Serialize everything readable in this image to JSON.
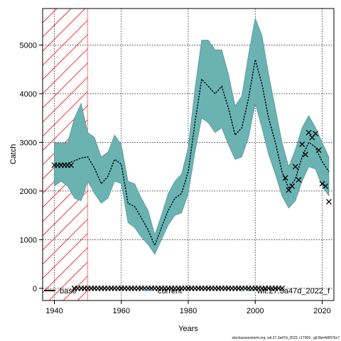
{
  "chart_data": {
    "type": "line",
    "title": "",
    "xlabel": "Years",
    "ylabel": "Catch",
    "xlim": [
      1936.5,
      2023.5
    ],
    "ylim": [
      -250,
      5750
    ],
    "x_ticks": [
      1940,
      1960,
      1980,
      2000,
      2020
    ],
    "y_ticks": [
      0,
      1000,
      2000,
      3000,
      4000,
      5000
    ],
    "grid": true,
    "legend_position": "bottom",
    "colors": {
      "band": "#6bb3b3",
      "band_edge": "#4f8f8f",
      "median": "#000000",
      "hatch": "#ff0000",
      "observed": "#000000",
      "current": "#45a0c8",
      "retro_dash": "#3a9b80"
    },
    "hatched_region": {
      "x_from": 1936.5,
      "x_to": 1950
    },
    "series": [
      {
        "name": "base",
        "kind": "median",
        "x": [
          1940,
          1942,
          1944,
          1946,
          1948,
          1950,
          1952,
          1954,
          1956,
          1958,
          1960,
          1962,
          1964,
          1966,
          1968,
          1970,
          1972,
          1974,
          1976,
          1978,
          1980,
          1982,
          1984,
          1986,
          1988,
          1990,
          1992,
          1994,
          1996,
          1998,
          2000,
          2002,
          2004,
          2006,
          2008,
          2010,
          2012,
          2014,
          2016,
          2018,
          2020,
          2022
        ],
        "y": [
          2520,
          2550,
          2570,
          2620,
          2680,
          2700,
          2470,
          2150,
          2300,
          2650,
          2550,
          1750,
          1680,
          1450,
          1200,
          880,
          1250,
          1600,
          1850,
          1950,
          2400,
          3400,
          4300,
          4150,
          4000,
          4150,
          3700,
          3150,
          3300,
          3900,
          4700,
          4200,
          3500,
          3000,
          2400,
          2050,
          2250,
          2700,
          3000,
          2900,
          2600,
          2400
        ]
      },
      {
        "name": "",
        "kind": "band_upper",
        "x": [
          1940,
          1942,
          1944,
          1946,
          1948,
          1950,
          1952,
          1954,
          1956,
          1958,
          1960,
          1962,
          1964,
          1966,
          1968,
          1970,
          1972,
          1974,
          1976,
          1978,
          1980,
          1982,
          1984,
          1986,
          1988,
          1990,
          1992,
          1994,
          1996,
          1998,
          2000,
          2002,
          2004,
          2006,
          2008,
          2010,
          2012,
          2014,
          2016,
          2018,
          2020,
          2022
        ],
        "y": [
          3000,
          2980,
          3000,
          3500,
          3800,
          3200,
          3100,
          2700,
          2800,
          3150,
          2950,
          2200,
          2150,
          1850,
          1600,
          1100,
          1500,
          1950,
          2200,
          2350,
          2900,
          4100,
          5100,
          5100,
          4900,
          4900,
          4400,
          3750,
          3950,
          4800,
          5550,
          5200,
          4400,
          3700,
          3000,
          2500,
          2850,
          3300,
          3550,
          3300,
          3000,
          2700
        ]
      },
      {
        "name": "",
        "kind": "band_lower",
        "x": [
          1940,
          1942,
          1944,
          1946,
          1948,
          1950,
          1952,
          1954,
          1956,
          1958,
          1960,
          1962,
          1964,
          1966,
          1968,
          1970,
          1972,
          1974,
          1976,
          1978,
          1980,
          1982,
          1984,
          1986,
          1988,
          1990,
          1992,
          1994,
          1996,
          1998,
          2000,
          2002,
          2004,
          2006,
          2008,
          2010,
          2012,
          2014,
          2016,
          2018,
          2020,
          2022
        ],
        "y": [
          2100,
          2200,
          2100,
          1850,
          1800,
          2200,
          1950,
          1750,
          1850,
          2200,
          2150,
          1350,
          1250,
          1050,
          900,
          700,
          1000,
          1300,
          1500,
          1550,
          1950,
          2800,
          3500,
          3400,
          3200,
          3300,
          2950,
          2650,
          2700,
          3100,
          3800,
          3300,
          2750,
          2350,
          1900,
          1650,
          1800,
          2200,
          2500,
          2450,
          2100,
          1900
        ]
      },
      {
        "name": "current",
        "kind": "retro",
        "x": [
          1940,
          1942,
          1944,
          1946,
          1948,
          1950,
          1952,
          1954,
          1956,
          1958,
          1960,
          1962,
          1964,
          1966,
          1968,
          1970,
          1972,
          1974,
          1976,
          1978,
          1980,
          1982,
          1984,
          1986,
          1988,
          1990,
          1992,
          1994,
          1996,
          1998,
          2000,
          2002,
          2004,
          2006,
          2008,
          2010,
          2012,
          2014,
          2016,
          2018,
          2020,
          2022
        ],
        "y": [
          2520,
          2550,
          2570,
          2620,
          2680,
          2700,
          2470,
          2150,
          2300,
          2650,
          2550,
          1750,
          1680,
          1450,
          1200,
          880,
          1250,
          1600,
          1850,
          1950,
          2400,
          3400,
          4300,
          4150,
          4000,
          4150,
          3700,
          3150,
          3300,
          3900,
          4700,
          4200,
          3500,
          3000,
          2400,
          2050,
          2250,
          2700,
          3000,
          2900,
          2600,
          2400
        ]
      },
      {
        "name": "wit.27.3a47d_2022_f",
        "kind": "retro_dash",
        "x": [
          1940,
          1942,
          1944,
          1946,
          1948,
          1950,
          1952,
          1954,
          1956,
          1958,
          1960,
          1962,
          1964,
          1966,
          1968,
          1970,
          1972,
          1974,
          1976,
          1978,
          1980,
          1982,
          1984,
          1986,
          1988,
          1990,
          1992,
          1994,
          1996,
          1998,
          2000,
          2002,
          2004,
          2006,
          2008,
          2010,
          2012,
          2014,
          2016,
          2018,
          2020,
          2022
        ],
        "y": [
          2520,
          2550,
          2570,
          2620,
          2680,
          2700,
          2470,
          2150,
          2300,
          2650,
          2550,
          1750,
          1680,
          1450,
          1200,
          880,
          1250,
          1600,
          1850,
          1950,
          2400,
          3400,
          4300,
          4150,
          4000,
          4150,
          3700,
          3150,
          3300,
          3900,
          4700,
          4200,
          3500,
          3000,
          2400,
          2050,
          2250,
          2700,
          3000,
          2900,
          2600,
          2400
        ]
      },
      {
        "name": "",
        "kind": "observed",
        "x": [
          1940,
          1941,
          1942,
          1943,
          1944,
          1945,
          2009,
          2010,
          2011,
          2012,
          2013,
          2014,
          2015,
          2016,
          2017,
          2018,
          2019,
          2020,
          2021,
          2022
        ],
        "y": [
          2530,
          2530,
          2530,
          2530,
          2530,
          2530,
          2270,
          2020,
          2100,
          2500,
          2230,
          2960,
          2750,
          3200,
          3100,
          3180,
          2840,
          2150,
          2100,
          1780
        ]
      },
      {
        "name": "",
        "kind": "zero_markers",
        "x_from": 1946,
        "x_to": 2008,
        "y": 0
      }
    ]
  },
  "footer": "stockassessment.org, wit.27.3a47d_2023, r17369 , git:5be4d657bc7"
}
